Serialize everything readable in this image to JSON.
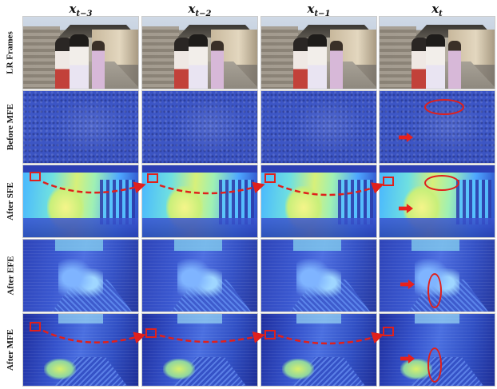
{
  "columns": [
    {
      "base": "x",
      "sub": "t−3"
    },
    {
      "base": "x",
      "sub": "t−2"
    },
    {
      "base": "x",
      "sub": "t−1"
    },
    {
      "base": "x",
      "sub": "t"
    }
  ],
  "rows": [
    {
      "label": "LR Frames",
      "style": "photo"
    },
    {
      "label": "Before MFE",
      "style": "noise"
    },
    {
      "label": "After SFE",
      "style": "sfe"
    },
    {
      "label": "After EFE",
      "style": "efe"
    },
    {
      "label": "After MFE",
      "style": "mfe"
    }
  ],
  "annotation_color": "#e0201c"
}
